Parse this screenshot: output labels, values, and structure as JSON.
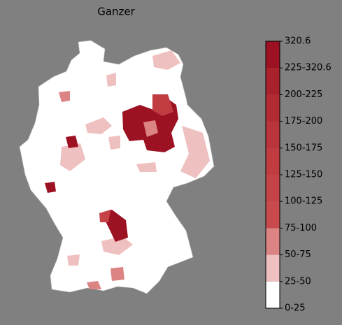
{
  "title": "Ganzer",
  "colorbar": {
    "labels": [
      "0-25",
      "25-50",
      "50-75",
      "75-100",
      "100-125",
      "125-150",
      "150-175",
      "175-200",
      "200-225",
      "225-320.6",
      "320.6"
    ],
    "colors": [
      "#ffffff",
      "#efc0c0",
      "#dc8383",
      "#c94a4c",
      "#c54246",
      "#c03c41",
      "#ba343b",
      "#b22b33",
      "#a9212b",
      "#9d1222"
    ]
  }
}
